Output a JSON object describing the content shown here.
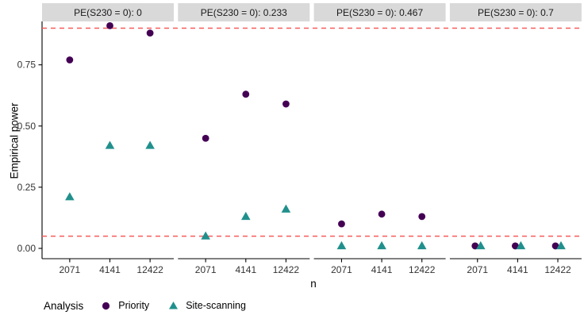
{
  "figure": {
    "y_axis_title": "Empirical power",
    "x_axis_title": "n"
  },
  "legend": {
    "title": "Analysis",
    "items": [
      {
        "label": "Priority",
        "marker": "circle",
        "color": "#440154"
      },
      {
        "label": "Site-scanning",
        "marker": "triangle",
        "color": "#21908C"
      }
    ]
  },
  "colors": {
    "priority": "#440154",
    "site_scanning": "#21908C",
    "reference_line": "#F85B5B",
    "strip_background": "#D9D9D9",
    "strip_text": "#1a1a1a",
    "axis_line": "#000000",
    "axis_text": "#333333"
  },
  "chart_data": {
    "type": "scatter",
    "categories": [
      "2071",
      "4141",
      "12422"
    ],
    "x_axis_label": "n",
    "y_axis_label": "Empirical power",
    "y_tick_values": [
      0,
      0.25,
      0.5,
      0.75
    ],
    "y_tick_labels": [
      "0.00",
      "0.25",
      "0.50",
      "0.75"
    ],
    "ylim": [
      -0.045,
      0.93
    ],
    "grid": "off",
    "legend_position": "bottom-left",
    "reference_lines": [
      {
        "value": 0.05,
        "style": "dashed",
        "color": "#F85B5B"
      },
      {
        "value": 0.9,
        "style": "dashed",
        "color": "#F85B5B"
      }
    ],
    "facets": [
      {
        "label": "PE(S230 = 0): 0",
        "series": [
          {
            "name": "Priority",
            "values": [
              0.77,
              0.91,
              0.88
            ]
          },
          {
            "name": "Site-scanning",
            "values": [
              0.21,
              0.42,
              0.42
            ]
          }
        ]
      },
      {
        "label": "PE(S230 = 0): 0.233",
        "series": [
          {
            "name": "Priority",
            "values": [
              0.45,
              0.63,
              0.59
            ]
          },
          {
            "name": "Site-scanning",
            "values": [
              0.05,
              0.13,
              0.16
            ]
          }
        ]
      },
      {
        "label": "PE(S230 = 0): 0.467",
        "series": [
          {
            "name": "Priority",
            "values": [
              0.1,
              0.14,
              0.13
            ]
          },
          {
            "name": "Site-scanning",
            "values": [
              0.01,
              0.01,
              0.01
            ]
          }
        ]
      },
      {
        "label": "PE(S230 = 0): 0.7",
        "series": [
          {
            "name": "Priority",
            "values": [
              0.01,
              0.01,
              0.01
            ]
          },
          {
            "name": "Site-scanning",
            "values": [
              0.01,
              0.01,
              0.01
            ]
          }
        ]
      }
    ]
  }
}
